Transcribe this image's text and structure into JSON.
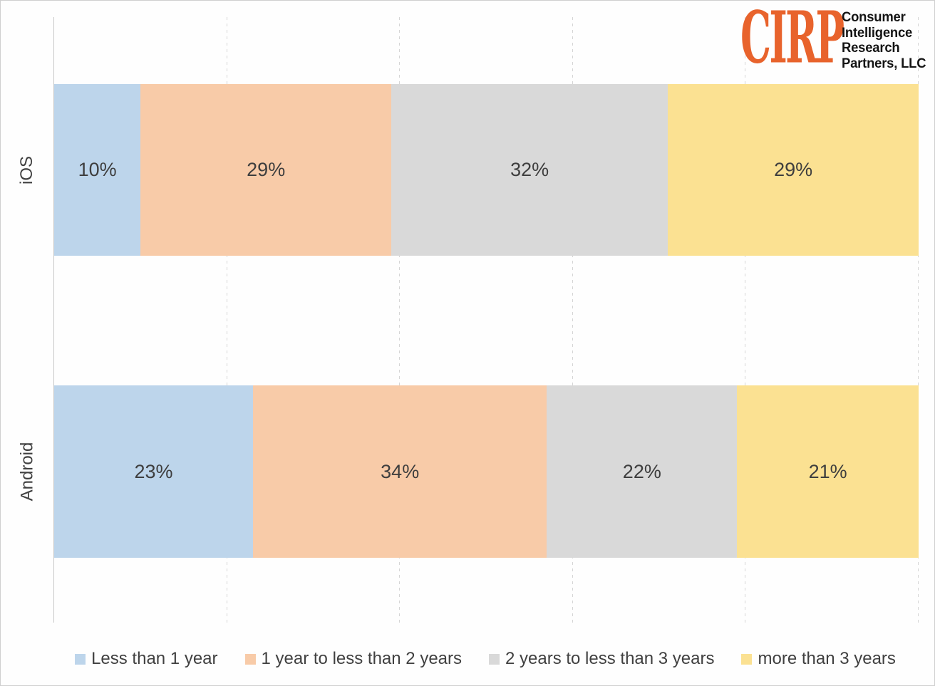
{
  "logo": {
    "mark": "CIRP",
    "mark_color": "#E8632C",
    "lines": [
      "Consumer",
      "Intelligence",
      "Research",
      "Partners, LLC"
    ]
  },
  "chart_data": {
    "type": "bar",
    "orientation": "horizontal",
    "stacked": true,
    "categories": [
      "iOS",
      "Android"
    ],
    "series": [
      {
        "name": "Less than 1 year",
        "color": "#BDD5EB",
        "values": [
          10,
          23
        ]
      },
      {
        "name": "1 year to less than 2 years",
        "color": "#F8CBA8",
        "values": [
          29,
          34
        ]
      },
      {
        "name": "2 years to less than 3 years",
        "color": "#D9D9D9",
        "values": [
          32,
          22
        ]
      },
      {
        "name": "more than 3 years",
        "color": "#FBE192",
        "values": [
          29,
          21
        ]
      }
    ],
    "xlim": [
      0,
      100
    ],
    "gridlines_pct": [
      20,
      40,
      60,
      80,
      100
    ],
    "grid_style": "dashed",
    "legend_position": "bottom",
    "data_label_format": "{v}%",
    "axis_labels_shown": false
  }
}
